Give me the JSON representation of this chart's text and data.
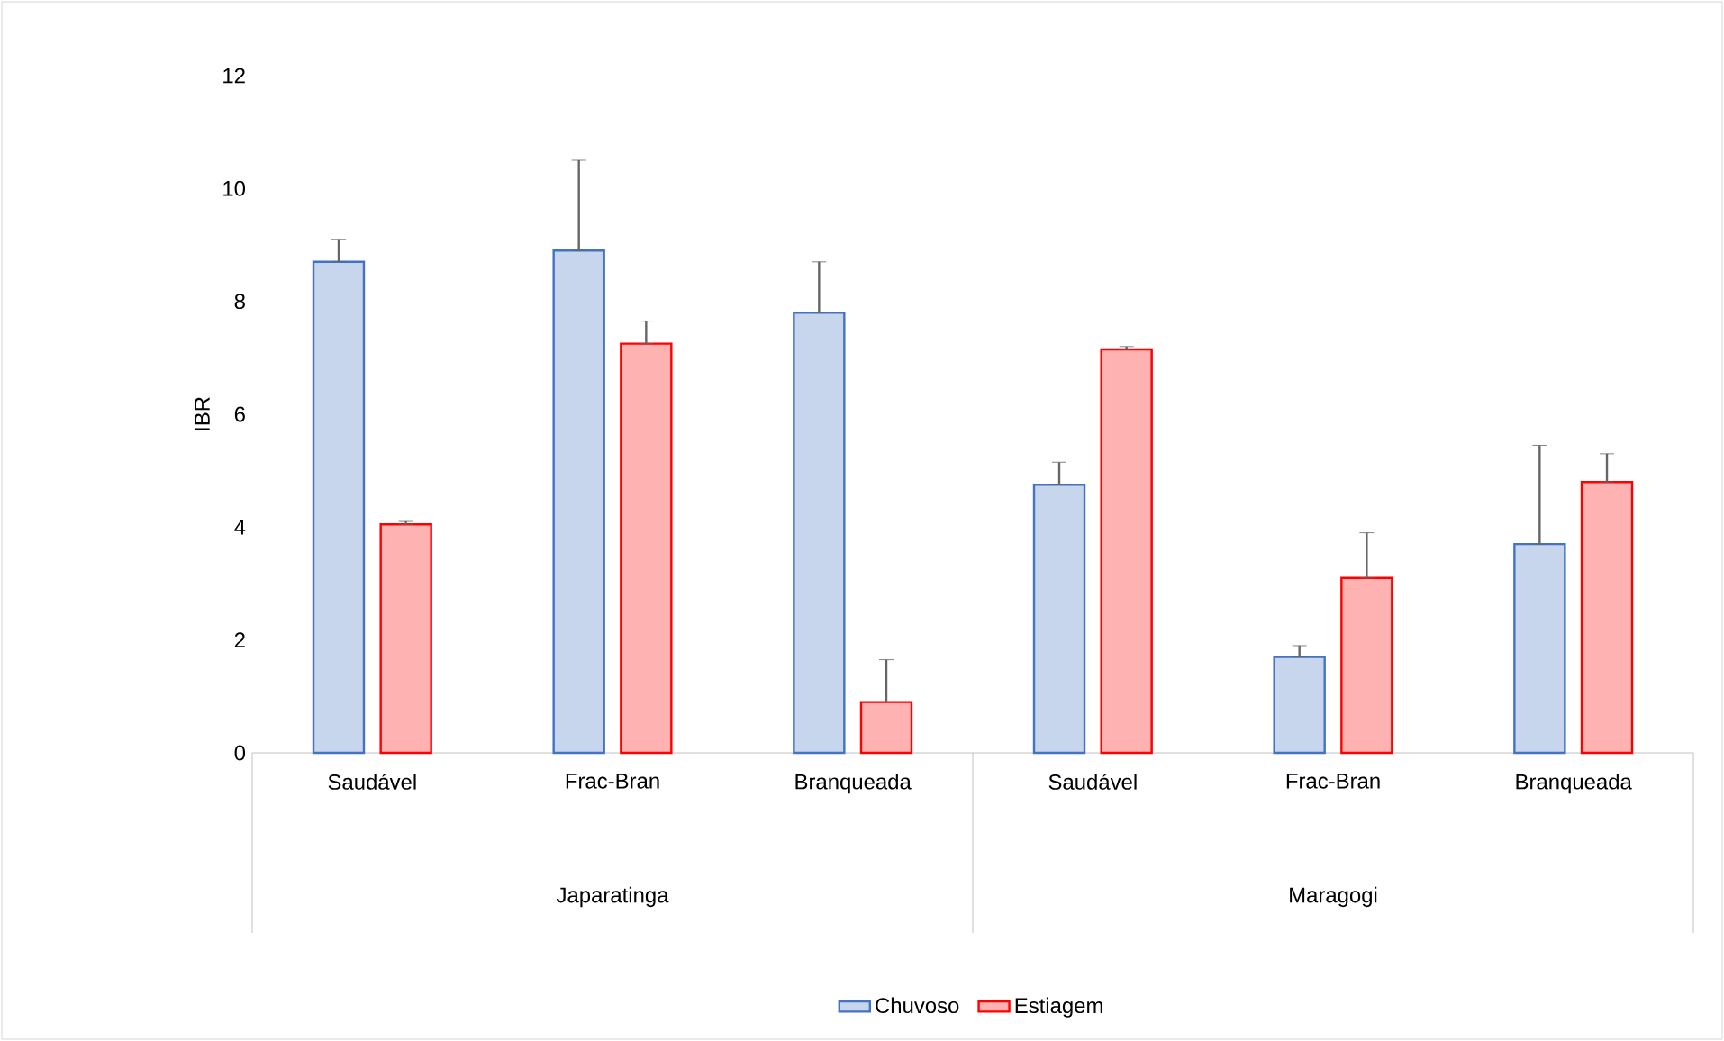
{
  "chart_data": {
    "type": "bar",
    "ylabel": "IBR",
    "categories": [
      "Saudável",
      "Frac-Bran",
      "Branqueada",
      "Saudável",
      "Frac-Bran",
      "Branqueada"
    ],
    "annotations": [
      "Japaratinga",
      "Maragogi"
    ],
    "series": [
      {
        "name": "Chuvoso",
        "color": "#4472c4",
        "values": [
          8.7,
          8.9,
          7.8,
          4.75,
          1.7,
          3.7
        ],
        "errors": [
          [
            8.7,
            9.1
          ],
          [
            8.9,
            10.5
          ],
          [
            7.8,
            8.7
          ],
          [
            4.75,
            5.15
          ],
          [
            1.7,
            1.9
          ],
          [
            3.7,
            5.45
          ]
        ]
      },
      {
        "name": "Estiagem",
        "color": "#ff0000",
        "values": [
          4.05,
          7.25,
          0.9,
          7.15,
          3.1,
          4.8
        ],
        "errors": [
          [
            4.05,
            4.1
          ],
          [
            7.25,
            7.65
          ],
          [
            0.9,
            1.65
          ],
          [
            7.15,
            7.2
          ],
          [
            3.1,
            3.9
          ],
          [
            4.8,
            5.3
          ]
        ]
      }
    ],
    "ylim": [
      0,
      12
    ],
    "yticks": [
      0,
      2,
      4,
      6,
      8,
      10,
      12
    ],
    "grid": false,
    "legend": "bottom"
  }
}
